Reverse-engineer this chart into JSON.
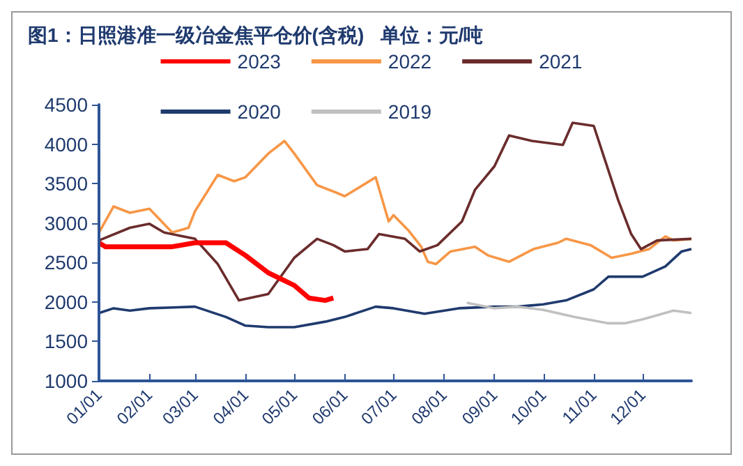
{
  "chart_data": {
    "type": "line",
    "title": "图1：日照港准一级冶金焦平仓价(含税)   单位：元/吨",
    "ylim": [
      1000,
      4500
    ],
    "yticks": [
      1000,
      1500,
      2000,
      2500,
      3000,
      3500,
      4000,
      4500
    ],
    "xlim": [
      "--01-01",
      "--12-31"
    ],
    "xticks": [
      {
        "value": "--01-01",
        "label": "01/01"
      },
      {
        "value": "--02-01",
        "label": "02/01"
      },
      {
        "value": "--03-01",
        "label": "03/01"
      },
      {
        "value": "--04-01",
        "label": "04/01"
      },
      {
        "value": "--05-01",
        "label": "05/01"
      },
      {
        "value": "--06-01",
        "label": "06/01"
      },
      {
        "value": "--07-01",
        "label": "07/01"
      },
      {
        "value": "--08-01",
        "label": "08/01"
      },
      {
        "value": "--09-01",
        "label": "09/01"
      },
      {
        "value": "--10-01",
        "label": "10/01"
      },
      {
        "value": "--11-01",
        "label": "11/01"
      },
      {
        "value": "--12-01",
        "label": "12/01"
      }
    ],
    "grid": false,
    "legend": "top",
    "marker": "none",
    "line_style": "solid",
    "series": [
      {
        "name": "2023",
        "color": "#ff0000",
        "x": [
          "--01-01",
          "--01-05",
          "--02-15",
          "--03-01",
          "--03-20",
          "--04-01",
          "--04-15",
          "--05-01",
          "--05-10",
          "--05-20",
          "--05-25"
        ],
        "values": [
          2750,
          2700,
          2700,
          2750,
          2750,
          2590,
          2370,
          2210,
          2050,
          2020,
          2050
        ]
      },
      {
        "name": "2022",
        "color": "#f79646",
        "x": [
          "--01-01",
          "--01-10",
          "--01-20",
          "--02-01",
          "--02-15",
          "--02-25",
          "--03-01",
          "--03-15",
          "--03-25",
          "--04-01",
          "--04-15",
          "--04-25",
          "--05-01",
          "--05-15",
          "--05-25",
          "--06-01",
          "--06-20",
          "--06-28",
          "--07-01",
          "--07-10",
          "--07-18",
          "--07-22",
          "--07-27",
          "--08-05",
          "--08-20",
          "--08-28",
          "--09-10",
          "--09-25",
          "--10-10",
          "--10-15",
          "--10-30",
          "--11-12",
          "--11-24",
          "--12-05",
          "--12-15",
          "--12-20",
          "--12-31"
        ],
        "values": [
          2880,
          3210,
          3130,
          3180,
          2880,
          2940,
          3150,
          3610,
          3530,
          3580,
          3880,
          4040,
          3880,
          3480,
          3400,
          3340,
          3580,
          3020,
          3100,
          2910,
          2700,
          2510,
          2480,
          2640,
          2700,
          2590,
          2510,
          2670,
          2750,
          2800,
          2720,
          2560,
          2610,
          2670,
          2830,
          2780,
          2800
        ]
      },
      {
        "name": "2021",
        "color": "#6b2c2c",
        "x": [
          "--01-01",
          "--01-20",
          "--02-01",
          "--02-10",
          "--03-01",
          "--03-15",
          "--03-28",
          "--04-15",
          "--05-01",
          "--05-15",
          "--05-25",
          "--06-01",
          "--06-15",
          "--06-22",
          "--07-08",
          "--07-17",
          "--07-28",
          "--08-12",
          "--08-20",
          "--09-01",
          "--09-10",
          "--09-24",
          "--10-13",
          "--10-19",
          "--11-01",
          "--11-16",
          "--11-24",
          "--11-30",
          "--12-10",
          "--12-31"
        ],
        "values": [
          2780,
          2940,
          2990,
          2880,
          2800,
          2480,
          2020,
          2100,
          2560,
          2800,
          2720,
          2640,
          2670,
          2860,
          2800,
          2640,
          2720,
          3020,
          3420,
          3720,
          4110,
          4040,
          3990,
          4270,
          4230,
          3290,
          2860,
          2670,
          2780,
          2800
        ]
      },
      {
        "name": "2020",
        "color": "#1f3a6e",
        "x": [
          "--01-01",
          "--01-10",
          "--01-20",
          "--02-01",
          "--03-01",
          "--03-20",
          "--04-01",
          "--04-15",
          "--05-01",
          "--05-20",
          "--06-01",
          "--06-20",
          "--07-01",
          "--07-20",
          "--08-10",
          "--09-01",
          "--09-15",
          "--10-01",
          "--10-15",
          "--11-01",
          "--11-10",
          "--12-01",
          "--12-15",
          "--12-25",
          "--12-31"
        ],
        "values": [
          1860,
          1920,
          1890,
          1920,
          1940,
          1810,
          1700,
          1680,
          1680,
          1750,
          1810,
          1940,
          1920,
          1850,
          1920,
          1940,
          1940,
          1970,
          2020,
          2160,
          2320,
          2320,
          2450,
          2640,
          2670
        ]
      },
      {
        "name": "2019",
        "color": "#c0c0c0",
        "x": [
          "--08-15",
          "--09-01",
          "--09-15",
          "--10-01",
          "--10-20",
          "--11-10",
          "--11-20",
          "--12-01",
          "--12-20",
          "--12-31"
        ],
        "values": [
          1990,
          1920,
          1940,
          1900,
          1810,
          1730,
          1730,
          1780,
          1890,
          1860
        ]
      }
    ]
  }
}
